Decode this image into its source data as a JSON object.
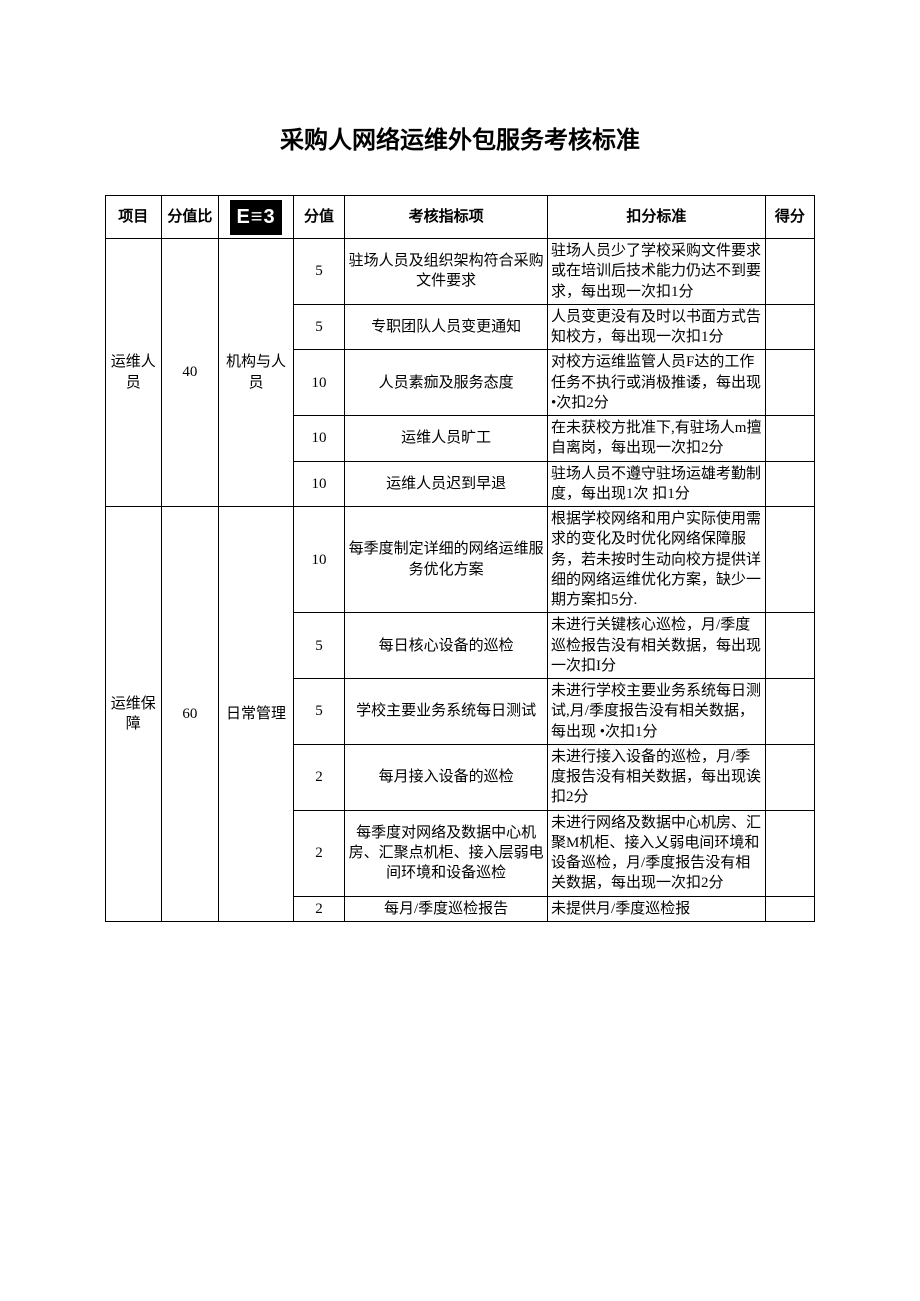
{
  "title": "采购人网络运维外包服务考核标准",
  "header": {
    "project": "项目",
    "ratio": "分值比",
    "category_badge": "E≡3",
    "score": "分值",
    "item": "考核指标项",
    "standard": "扣分标准",
    "result": "得分"
  },
  "group1": {
    "project": "运维人员",
    "ratio": "40",
    "category": "机构与人员",
    "rows": [
      {
        "score": "5",
        "item": "驻场人员及组织架构符合采购文件要求",
        "standard": "驻场人员少了学校采购文件要求或在培训后技术能力仍达不到要求，每出现一次扣1分"
      },
      {
        "score": "5",
        "item": "专职团队人员变更通知",
        "standard": "人员变更没有及时以书面方式告知校方，每出现一次扣1分"
      },
      {
        "score": "10",
        "item": "人员素痂及服务态度",
        "standard": "对校方运维监管人员F达的工作任务不执行或消极推诿，每出现•次扣2分"
      },
      {
        "score": "10",
        "item": "运维人员旷工",
        "standard": "在未获校方批准下,有驻场人m擅自离岗，每出现一次扣2分"
      },
      {
        "score": "10",
        "item": "运维人员迟到早退",
        "standard": "驻场人员不遵守驻场运雄考勤制度，每出现1次\n扣1分"
      }
    ]
  },
  "group2": {
    "project": "运维保障",
    "ratio": "60",
    "category": "日常管理",
    "rows": [
      {
        "score": "10",
        "item": "每季度制定详细的网络运维服务优化方案",
        "standard": "根据学校网络和用户实际使用需求的变化及时优化网络保障服务，若未按时生动向校方提供详细的网络运维优化方案，缺少一期方案扣5分."
      },
      {
        "score": "5",
        "item": "每日核心设备的巡检",
        "standard": "未进行关键核心巡检，月/季度巡检报告没有相关数据，每出现一次扣I分"
      },
      {
        "score": "5",
        "item": "学校主要业务系统每日测试",
        "standard": "未进行学校主要业务系统每日测试,月/季度报告没有相关数据，每出现\n•次扣1分"
      },
      {
        "score": "2",
        "item": "每月接入设备的巡检",
        "standard": "未进行接入设备的巡检，月/季度报告没有相关数据，每出现诶扣2分"
      },
      {
        "score": "2",
        "item": "每季度对网络及数据中心机房、汇聚点机柜、接入层弱电间环境和设备巡检",
        "standard": "未进行网络及数据中心机房、汇聚M机柜、接入乂弱电间环境和设备巡检，月/季度报告没有相关数据，每出现一次扣2分"
      },
      {
        "score": "2",
        "item": "每月/季度巡检报告",
        "standard": "未提供月/季度巡检报"
      }
    ]
  }
}
